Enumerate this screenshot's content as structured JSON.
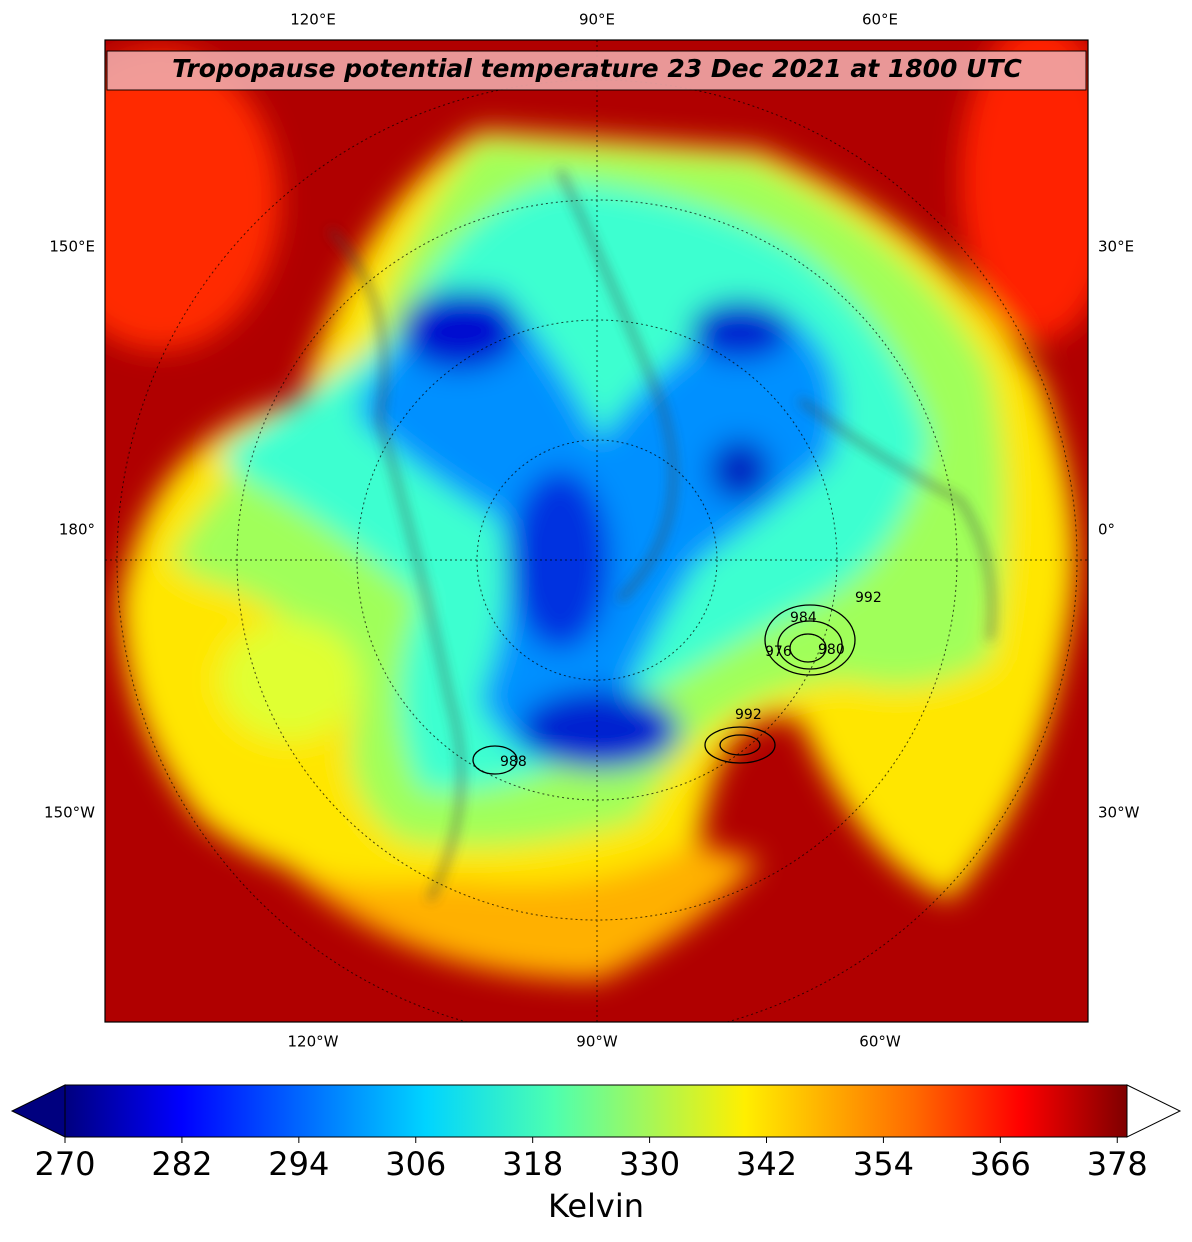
{
  "map": {
    "title": "Tropopause potential temperature 23 Dec 2021 at 1800 UTC",
    "lon_labels": {
      "top": [
        "120°E",
        "90°E",
        "60°E"
      ],
      "bottom": [
        "120°W",
        "90°W",
        "60°W"
      ],
      "left": [
        "150°E",
        "180°",
        "150°W"
      ],
      "right": [
        "30°E",
        "0°",
        "30°W"
      ]
    },
    "contour_labels": [
      "992",
      "984",
      "980",
      "976",
      "992",
      "988"
    ]
  },
  "colorbar": {
    "label": "Kelvin",
    "clim": [
      270,
      379
    ],
    "ticks": [
      270,
      282,
      294,
      306,
      318,
      330,
      342,
      354,
      366,
      378
    ]
  }
}
